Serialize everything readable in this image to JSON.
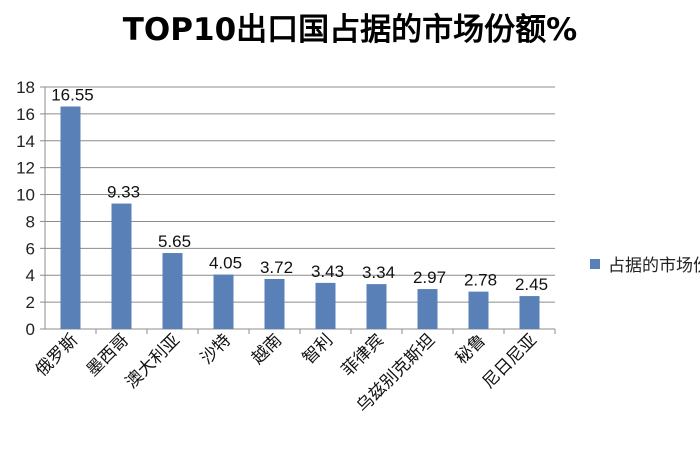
{
  "chart_data": {
    "type": "bar",
    "title": "TOP10出口国占据的市场份额%",
    "categories": [
      "俄罗斯",
      "墨西哥",
      "澳大利亚",
      "沙特",
      "越南",
      "智利",
      "菲律宾",
      "乌兹别克斯坦",
      "秘鲁",
      "尼日尼亚"
    ],
    "series": [
      {
        "name": "占据的市场份额%",
        "values": [
          16.55,
          9.33,
          5.65,
          4.05,
          3.72,
          3.43,
          3.34,
          2.97,
          2.78,
          2.45
        ]
      }
    ],
    "data_labels": [
      "16.55",
      "9.33",
      "5.65",
      "4.05",
      "3.72",
      "3.43",
      "3.34",
      "2.97",
      "2.78",
      "2.45"
    ],
    "ylim": [
      0,
      18
    ],
    "yticks": [
      0,
      2,
      4,
      6,
      8,
      10,
      12,
      14,
      16,
      18
    ],
    "grid": true,
    "legend": "right",
    "bar_color": "#5a80b8"
  }
}
